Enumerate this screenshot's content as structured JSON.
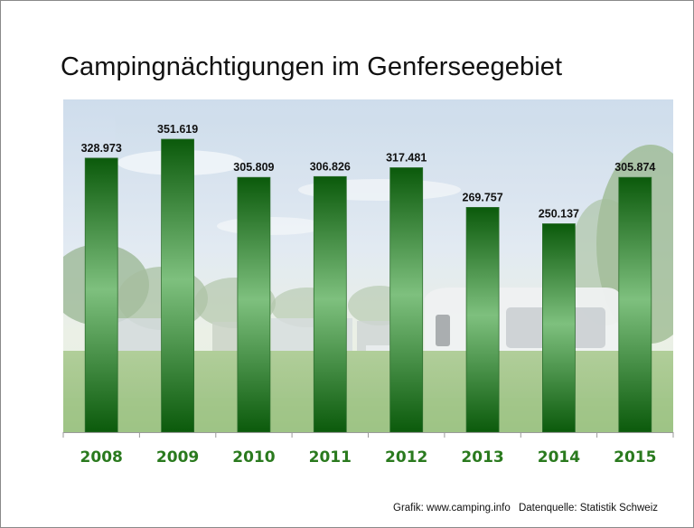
{
  "title": "Campingnächtigungen im Genferseegebiet",
  "source": {
    "grafik": "Grafik: www.camping.info",
    "datenquelle": "Datenquelle: Statistik Schweiz"
  },
  "colors": {
    "bar_dark": "#0b5a0b",
    "bar_light": "#7ec07e",
    "year_label": "#2a7a1e",
    "value_label": "#111111"
  },
  "chart_data": {
    "type": "bar",
    "title": "Campingnächtigungen im Genferseegebiet",
    "categories": [
      "2008",
      "2009",
      "2010",
      "2011",
      "2012",
      "2013",
      "2014",
      "2015"
    ],
    "values": [
      328973,
      351619,
      305809,
      306826,
      317481,
      269757,
      250137,
      305874
    ],
    "value_labels": [
      "328.973",
      "351.619",
      "305.809",
      "306.826",
      "317.481",
      "269.757",
      "250.137",
      "305.874"
    ],
    "ylim": [
      0,
      400000
    ],
    "xlabel": "",
    "ylabel": "",
    "grid": false,
    "legend": "none",
    "background": "camping-photo"
  }
}
